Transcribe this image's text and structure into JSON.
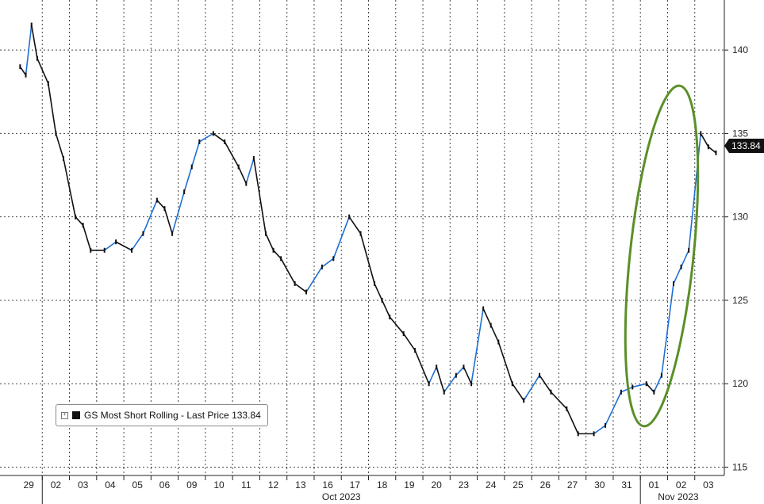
{
  "chart_data": {
    "type": "line",
    "title": "",
    "xlabel": "",
    "ylabel": "",
    "ylim": [
      114.5,
      143
    ],
    "y_ticks": [
      115,
      120,
      125,
      130,
      135,
      140
    ],
    "x_day_labels": [
      "29",
      "02",
      "03",
      "04",
      "05",
      "06",
      "09",
      "10",
      "11",
      "12",
      "13",
      "16",
      "17",
      "18",
      "19",
      "20",
      "23",
      "24",
      "25",
      "26",
      "27",
      "30",
      "31",
      "01",
      "02",
      "03"
    ],
    "month_labels": [
      "Oct 2023",
      "Nov 2023"
    ],
    "grid": true,
    "legend_position": "bottom-left",
    "last_price_label": "133.84",
    "colors": {
      "up": "#1f6fd6",
      "down": "#111111",
      "ellipse": "#5a8f29",
      "last_price_box": "#111111"
    },
    "series": [
      {
        "name": "GS Most Short Rolling - Last Price 133.84",
        "points": [
          [
            "29",
            139.0
          ],
          [
            "29",
            138.5
          ],
          [
            "29",
            141.5
          ],
          [
            "29",
            139.5
          ],
          [
            "02",
            138.0
          ],
          [
            "02",
            135.0
          ],
          [
            "02",
            133.5
          ],
          [
            "03",
            130.0
          ],
          [
            "03",
            129.5
          ],
          [
            "03",
            128.0
          ],
          [
            "04",
            128.0
          ],
          [
            "04",
            128.5
          ],
          [
            "05",
            128.0
          ],
          [
            "05",
            129.0
          ],
          [
            "06",
            131.0
          ],
          [
            "06",
            130.5
          ],
          [
            "06",
            129.0
          ],
          [
            "09",
            131.5
          ],
          [
            "09",
            133.0
          ],
          [
            "09",
            134.5
          ],
          [
            "10",
            135.0
          ],
          [
            "10",
            134.5
          ],
          [
            "11",
            133.0
          ],
          [
            "11",
            132.0
          ],
          [
            "11",
            133.5
          ],
          [
            "12",
            129.0
          ],
          [
            "12",
            128.0
          ],
          [
            "12",
            127.5
          ],
          [
            "13",
            126.0
          ],
          [
            "13",
            125.5
          ],
          [
            "16",
            127.0
          ],
          [
            "16",
            127.5
          ],
          [
            "17",
            130.0
          ],
          [
            "17",
            129.0
          ],
          [
            "18",
            126.0
          ],
          [
            "18",
            125.0
          ],
          [
            "18",
            124.0
          ],
          [
            "19",
            123.0
          ],
          [
            "19",
            122.0
          ],
          [
            "20",
            120.0
          ],
          [
            "20",
            121.0
          ],
          [
            "20",
            119.5
          ],
          [
            "23",
            120.5
          ],
          [
            "23",
            121.0
          ],
          [
            "23",
            120.0
          ],
          [
            "24",
            124.5
          ],
          [
            "24",
            123.5
          ],
          [
            "24",
            122.5
          ],
          [
            "25",
            120.0
          ],
          [
            "25",
            119.0
          ],
          [
            "26",
            120.5
          ],
          [
            "26",
            119.5
          ],
          [
            "27",
            118.5
          ],
          [
            "27",
            117.0
          ],
          [
            "30",
            117.0
          ],
          [
            "30",
            117.5
          ],
          [
            "31",
            119.5
          ],
          [
            "31",
            119.8
          ],
          [
            "01",
            120.0
          ],
          [
            "01",
            119.5
          ],
          [
            "01",
            120.5
          ],
          [
            "02",
            126.0
          ],
          [
            "02",
            127.0
          ],
          [
            "02",
            128.0
          ],
          [
            "03",
            135.0
          ],
          [
            "03",
            134.2
          ],
          [
            "03",
            133.84
          ]
        ]
      }
    ]
  }
}
